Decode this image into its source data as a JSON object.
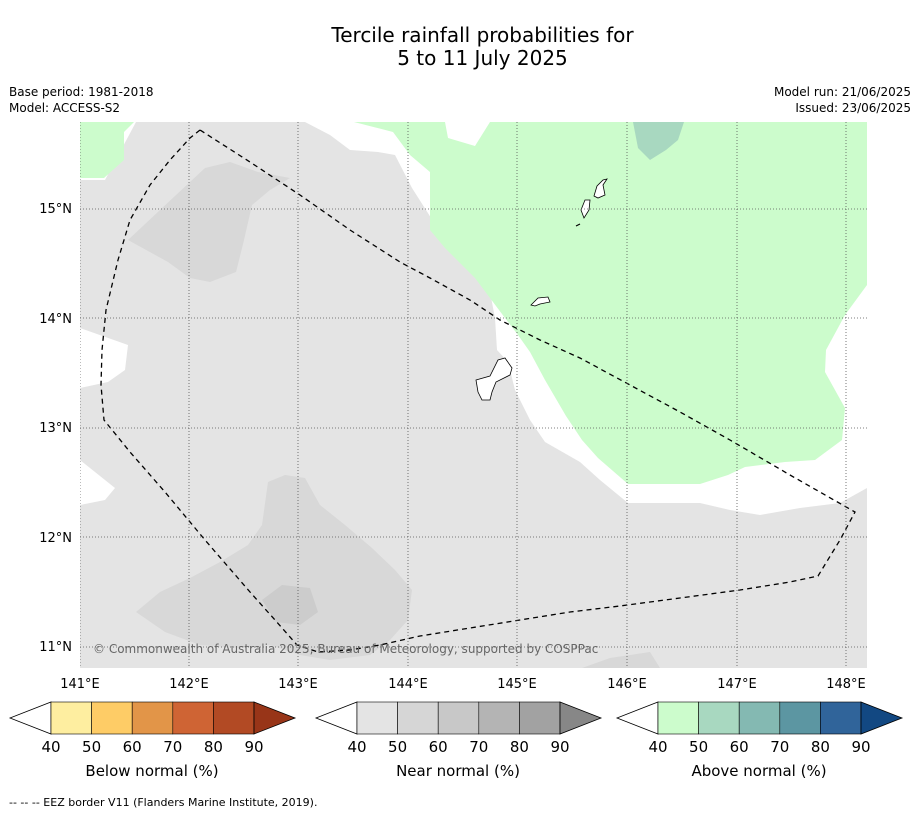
{
  "title": {
    "line1": "Tercile rainfall probabilities for",
    "line2": "5 to 11 July 2025"
  },
  "info": {
    "base_period": "Base period: 1981-2018",
    "model": "Model: ACCESS-S2",
    "model_run": "Model run: 21/06/2025",
    "issued": "Issued: 23/06/2025"
  },
  "map": {
    "lon_labels": [
      "141°E",
      "142°E",
      "143°E",
      "144°E",
      "145°E",
      "146°E",
      "147°E",
      "148°E"
    ],
    "lat_labels": [
      "15°N",
      "14°N",
      "13°N",
      "12°N",
      "11°N"
    ],
    "copyright": "© Commonwealth of Australia 2025, Bureau of Meteorology, supported by COSPPac",
    "colors": {
      "near_light": "#e4e4e4",
      "near_mid": "#d6d6d6",
      "near_dark": "#cacaca",
      "above_light": "#ccfccc",
      "above_mid": "#a8d8c0"
    }
  },
  "legends": [
    {
      "label": "Below normal (%)",
      "ticks": [
        "40",
        "50",
        "60",
        "70",
        "80",
        "90"
      ],
      "colors": [
        "#ffffff",
        "#feeea0",
        "#fecc66",
        "#e29548",
        "#cf6434",
        "#b24a24",
        "#983518"
      ]
    },
    {
      "label": "Near normal (%)",
      "ticks": [
        "40",
        "50",
        "60",
        "70",
        "80",
        "90"
      ],
      "colors": [
        "#ffffff",
        "#e4e4e4",
        "#d6d6d6",
        "#c8c8c8",
        "#b4b4b4",
        "#a2a2a2",
        "#878787"
      ]
    },
    {
      "label": "Above normal (%)",
      "ticks": [
        "40",
        "50",
        "60",
        "70",
        "80",
        "90"
      ],
      "colors": [
        "#ffffff",
        "#ccfccc",
        "#a8d8c0",
        "#84b9b2",
        "#5c96a2",
        "#30649a",
        "#124882"
      ]
    }
  ],
  "footer": "--  --  -- EEZ border V11 (Flanders Marine Institute, 2019)."
}
